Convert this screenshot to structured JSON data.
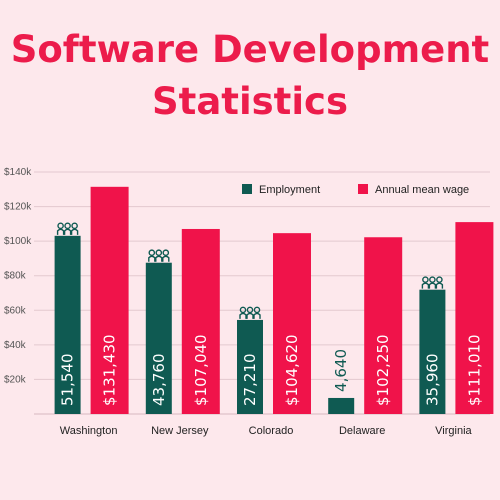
{
  "header": {
    "title_line1": "Software Development",
    "title_line2": "Statistics"
  },
  "colors": {
    "background": "#fde8ec",
    "title": "#ec1c4b",
    "employment": "#0f5a52",
    "wage": "#f0134a"
  },
  "chart_data": {
    "type": "bar",
    "categories": [
      "Washington",
      "New Jersey",
      "Colorado",
      "Delaware",
      "Virginia"
    ],
    "series": [
      {
        "name": "Employment",
        "values": [
          51540,
          43760,
          27210,
          4640,
          35960
        ],
        "labels": [
          "51,540",
          "43,760",
          "27,210",
          "4,640",
          "35,960"
        ],
        "plot_scale": 2,
        "color": "#0f5a52"
      },
      {
        "name": "Annual mean wage",
        "values": [
          131430,
          107040,
          104620,
          102250,
          111010
        ],
        "labels": [
          "$131,430",
          "$107,040",
          "$104,620",
          "$102,250",
          "$111,010"
        ],
        "plot_scale": 1,
        "color": "#f0134a"
      }
    ],
    "y_ticks": [
      "$20k",
      "$40k",
      "$60k",
      "$80k",
      "$100k",
      "$120k",
      "$140k"
    ],
    "ylim": [
      0,
      140000
    ],
    "grid": true,
    "legend_position": "top-right",
    "icon": "people-group-icon"
  }
}
